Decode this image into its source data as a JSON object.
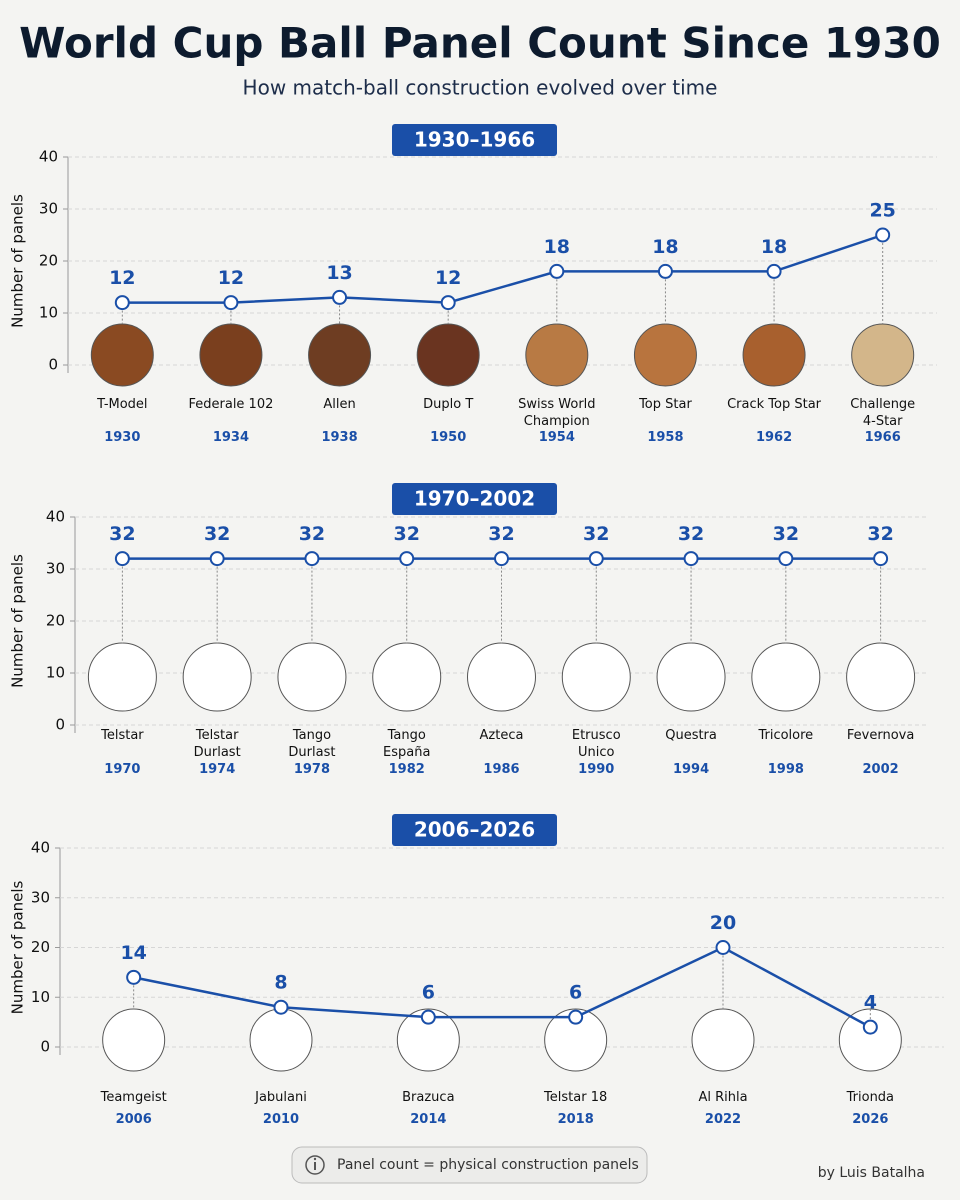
{
  "title": "World Cup Ball Panel Count Since 1930",
  "subtitle": "How match-ball construction evolved over time",
  "note": "Panel count = physical construction panels",
  "credit": "by Luis Batalha",
  "chart_data": [
    {
      "type": "line",
      "title": "1930–1966",
      "y_label": "Number of panels",
      "categories": [
        "T-Model",
        "Federale 102",
        "Allen",
        "Duplo T",
        "Swiss World Champion",
        "Top Star",
        "Crack Top Star",
        "Challenge 4-Star"
      ],
      "years": [
        "1930",
        "1934",
        "1938",
        "1950",
        "1954",
        "1958",
        "1962",
        "1966"
      ],
      "values": [
        12,
        12,
        13,
        12,
        18,
        18,
        18,
        25
      ],
      "color": "#1a4fa8",
      "ylim": [
        0,
        40
      ],
      "yticks": [
        0,
        10,
        20,
        30,
        40
      ],
      "grid": true
    },
    {
      "type": "line",
      "title": "1970–2002",
      "y_label": "Number of panels",
      "categories": [
        "Telstar",
        "Telstar Durlast",
        "Tango Durlast",
        "Tango España",
        "Azteca",
        "Etrusco Unico",
        "Questra",
        "Tricolore",
        "Fevernova"
      ],
      "years": [
        "1970",
        "1974",
        "1978",
        "1982",
        "1986",
        "1990",
        "1994",
        "1998",
        "2002"
      ],
      "values": [
        32,
        32,
        32,
        32,
        32,
        32,
        32,
        32,
        32
      ],
      "color": "#1a4fa8",
      "ylim": [
        0,
        40
      ],
      "yticks": [
        0,
        10,
        20,
        30,
        40
      ],
      "grid": true
    },
    {
      "type": "line",
      "title": "2006–2026",
      "y_label": "Number of panels",
      "categories": [
        "Teamgeist",
        "Jabulani",
        "Brazuca",
        "Telstar 18",
        "Al Rihla",
        "Trionda"
      ],
      "years": [
        "2006",
        "2010",
        "2014",
        "2018",
        "2022",
        "2026"
      ],
      "values": [
        14,
        8,
        6,
        6,
        20,
        4
      ],
      "color": "#1a4fa8",
      "ylim": [
        0,
        40
      ],
      "yticks": [
        0,
        10,
        20,
        30,
        40
      ],
      "grid": true
    }
  ]
}
